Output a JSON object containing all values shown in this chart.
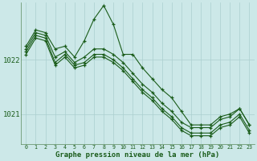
{
  "bg_color": "#cce8e8",
  "grid_color": "#aacfcf",
  "line_color": "#1a5c1a",
  "marker_color": "#1a5c1a",
  "xlabel": "Graphe pression niveau de la mer (hPa)",
  "xlabel_fontsize": 6.5,
  "xlabel_color": "#1a5c1a",
  "tick_color": "#1a5c1a",
  "ytick_labels": [
    "1021",
    "1022"
  ],
  "ylim": [
    1020.45,
    1023.05
  ],
  "xlim": [
    -0.5,
    23.5
  ],
  "xtick_labels": [
    "0",
    "1",
    "2",
    "3",
    "4",
    "5",
    "6",
    "7",
    "8",
    "9",
    "10",
    "11",
    "12",
    "13",
    "14",
    "15",
    "16",
    "17",
    "18",
    "19",
    "20",
    "21",
    "22",
    "23"
  ],
  "series": [
    [
      1022.25,
      1022.55,
      1022.5,
      1022.2,
      1022.25,
      1022.05,
      1022.35,
      1022.75,
      1023.0,
      1022.65,
      1022.1,
      1022.1,
      1021.85,
      1021.65,
      1021.45,
      1021.3,
      1021.05,
      1020.8,
      1020.8,
      1020.8,
      1020.95,
      1021.0,
      1021.1,
      1020.8
    ],
    [
      1022.2,
      1022.5,
      1022.45,
      1022.05,
      1022.15,
      1021.95,
      1022.05,
      1022.2,
      1022.2,
      1022.1,
      1021.95,
      1021.75,
      1021.55,
      1021.4,
      1021.2,
      1021.05,
      1020.85,
      1020.75,
      1020.75,
      1020.75,
      1020.9,
      1020.95,
      1021.1,
      1020.8
    ],
    [
      1022.15,
      1022.45,
      1022.4,
      1021.95,
      1022.1,
      1021.9,
      1021.95,
      1022.1,
      1022.1,
      1022.0,
      1021.85,
      1021.65,
      1021.45,
      1021.3,
      1021.1,
      1020.95,
      1020.75,
      1020.65,
      1020.65,
      1020.65,
      1020.8,
      1020.85,
      1021.0,
      1020.7
    ],
    [
      1022.1,
      1022.4,
      1022.35,
      1021.9,
      1022.05,
      1021.85,
      1021.9,
      1022.05,
      1022.05,
      1021.95,
      1021.8,
      1021.6,
      1021.4,
      1021.25,
      1021.05,
      1020.9,
      1020.7,
      1020.6,
      1020.6,
      1020.6,
      1020.75,
      1020.8,
      1020.95,
      1020.65
    ]
  ]
}
